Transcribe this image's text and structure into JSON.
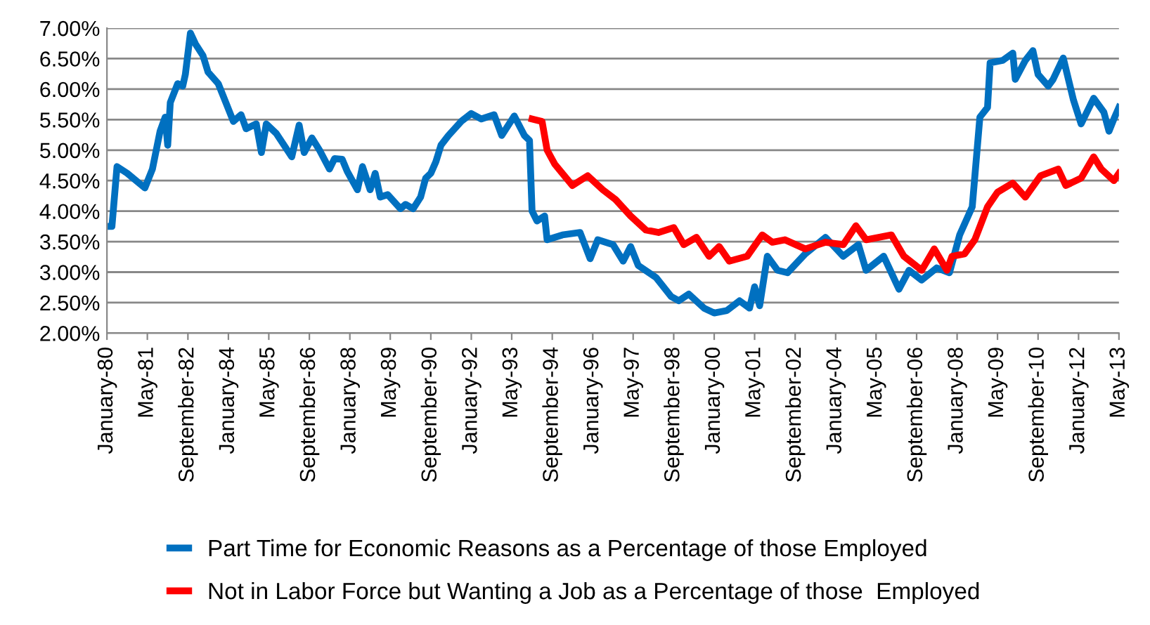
{
  "chart_data": {
    "type": "line",
    "ylim": [
      2,
      7
    ],
    "yticks": [
      {
        "value": 2,
        "label": "2.00%"
      },
      {
        "value": 2.5,
        "label": "2.50%"
      },
      {
        "value": 3,
        "label": "3.00%"
      },
      {
        "value": 3.5,
        "label": "3.50%"
      },
      {
        "value": 4,
        "label": "4.00%"
      },
      {
        "value": 4.5,
        "label": "4.50%"
      },
      {
        "value": 5,
        "label": "5.00%"
      },
      {
        "value": 5.5,
        "label": "5.50%"
      },
      {
        "value": 6,
        "label": "6.00%"
      },
      {
        "value": 6.5,
        "label": "6.50%"
      },
      {
        "value": 7,
        "label": "7.00%"
      }
    ],
    "xlim": [
      "1980-01",
      "2013-05"
    ],
    "xticks": [
      {
        "value": "1980-01",
        "label": "January-80"
      },
      {
        "value": "1981-05",
        "label": "May-81"
      },
      {
        "value": "1982-09",
        "label": "September-82"
      },
      {
        "value": "1984-01",
        "label": "January-84"
      },
      {
        "value": "1985-05",
        "label": "May-85"
      },
      {
        "value": "1986-09",
        "label": "September-86"
      },
      {
        "value": "1988-01",
        "label": "January-88"
      },
      {
        "value": "1989-05",
        "label": "May-89"
      },
      {
        "value": "1990-09",
        "label": "September-90"
      },
      {
        "value": "1992-01",
        "label": "January-92"
      },
      {
        "value": "1993-05",
        "label": "May-93"
      },
      {
        "value": "1994-09",
        "label": "September-94"
      },
      {
        "value": "1996-01",
        "label": "January-96"
      },
      {
        "value": "1997-05",
        "label": "May-97"
      },
      {
        "value": "1998-09",
        "label": "September-98"
      },
      {
        "value": "2000-01",
        "label": "January-00"
      },
      {
        "value": "2001-05",
        "label": "May-01"
      },
      {
        "value": "2002-09",
        "label": "September-02"
      },
      {
        "value": "2004-01",
        "label": "January-04"
      },
      {
        "value": "2005-05",
        "label": "May-05"
      },
      {
        "value": "2006-09",
        "label": "September-06"
      },
      {
        "value": "2008-01",
        "label": "January-08"
      },
      {
        "value": "2009-05",
        "label": "May-09"
      },
      {
        "value": "2010-09",
        "label": "September-10"
      },
      {
        "value": "2012-01",
        "label": "January-12"
      },
      {
        "value": "2013-05",
        "label": "May-13"
      }
    ],
    "grid": "y",
    "legend": "bottom",
    "line_style": "solid",
    "series": [
      {
        "name": "Part Time for Economic Reasons as a Percentage of those Employed",
        "color": "#0070c0",
        "x": [
          "1980-01",
          "1980-03",
          "1980-05",
          "1980-09",
          "1981-04",
          "1981-07",
          "1981-10",
          "1981-12",
          "1982-01",
          "1982-02",
          "1982-05",
          "1982-07",
          "1982-08",
          "1982-10",
          "1982-12",
          "1983-03",
          "1983-05",
          "1983-09",
          "1983-12",
          "1984-03",
          "1984-06",
          "1984-08",
          "1984-12",
          "1985-02",
          "1985-04",
          "1985-08",
          "1985-11",
          "1986-02",
          "1986-05",
          "1986-07",
          "1986-10",
          "1987-01",
          "1987-05",
          "1987-07",
          "1987-10",
          "1987-12",
          "1988-04",
          "1988-06",
          "1988-09",
          "1988-11",
          "1989-01",
          "1989-04",
          "1989-09",
          "1989-11",
          "1990-02",
          "1990-05",
          "1990-07",
          "1990-09",
          "1990-11",
          "1991-01",
          "1991-04",
          "1991-09",
          "1992-01",
          "1992-05",
          "1992-10",
          "1993-01",
          "1993-06",
          "1993-10",
          "1993-12",
          "1994-01",
          "1994-03",
          "1994-06",
          "1994-07",
          "1995-01",
          "1995-08",
          "1995-12",
          "1996-03",
          "1996-09",
          "1997-01",
          "1997-04",
          "1997-07",
          "1998-02",
          "1998-08",
          "1998-11",
          "1999-03",
          "1999-09",
          "2000-01",
          "2000-06",
          "2000-11",
          "2001-03",
          "2001-05",
          "2001-07",
          "2001-10",
          "2002-02",
          "2002-06",
          "2003-01",
          "2003-09",
          "2004-04",
          "2004-10",
          "2005-01",
          "2005-08",
          "2006-02",
          "2006-06",
          "2006-11",
          "2007-05",
          "2007-10",
          "2008-02",
          "2008-07",
          "2008-10",
          "2009-01",
          "2009-02",
          "2009-07",
          "2009-11",
          "2009-12",
          "2010-04",
          "2010-07",
          "2010-09",
          "2011-01",
          "2011-03",
          "2011-07",
          "2011-11",
          "2012-02",
          "2012-07",
          "2012-11",
          "2013-01",
          "2013-03",
          "2013-05"
        ],
        "values": [
          3.75,
          3.75,
          4.73,
          4.62,
          4.38,
          4.69,
          5.31,
          5.54,
          5.08,
          5.78,
          6.09,
          6.05,
          6.24,
          6.92,
          6.74,
          6.55,
          6.28,
          6.09,
          5.78,
          5.47,
          5.58,
          5.35,
          5.43,
          4.96,
          5.43,
          5.27,
          5.08,
          4.89,
          5.41,
          4.96,
          5.2,
          5.0,
          4.69,
          4.86,
          4.85,
          4.65,
          4.35,
          4.73,
          4.35,
          4.62,
          4.23,
          4.27,
          4.04,
          4.11,
          4.04,
          4.23,
          4.54,
          4.62,
          4.81,
          5.08,
          5.24,
          5.47,
          5.6,
          5.51,
          5.58,
          5.24,
          5.56,
          5.24,
          5.16,
          4.0,
          3.84,
          3.92,
          3.53,
          3.61,
          3.65,
          3.22,
          3.53,
          3.45,
          3.18,
          3.42,
          3.11,
          2.91,
          2.6,
          2.53,
          2.64,
          2.41,
          2.33,
          2.37,
          2.53,
          2.41,
          2.76,
          2.45,
          3.26,
          3.03,
          2.99,
          3.3,
          3.57,
          3.26,
          3.45,
          3.03,
          3.26,
          2.72,
          3.03,
          2.87,
          3.07,
          2.99,
          3.61,
          4.07,
          5.54,
          5.7,
          6.43,
          6.47,
          6.59,
          6.16,
          6.47,
          6.63,
          6.24,
          6.05,
          6.16,
          6.51,
          5.82,
          5.43,
          5.85,
          5.62,
          5.31,
          5.51,
          5.7
        ]
      },
      {
        "name": "Not in Labor Force but Wanting a Job as a Percentage of those  Employed",
        "color": "#ff0000",
        "x": [
          "1994-01",
          "1994-05",
          "1994-07",
          "1994-10",
          "1995-05",
          "1995-11",
          "1996-05",
          "1996-10",
          "1997-04",
          "1997-10",
          "1998-03",
          "1998-09",
          "1999-01",
          "1999-06",
          "1999-11",
          "2000-03",
          "2000-07",
          "2001-02",
          "2001-08",
          "2001-12",
          "2002-05",
          "2003-01",
          "2003-09",
          "2004-04",
          "2004-09",
          "2005-01",
          "2005-11",
          "2006-04",
          "2006-11",
          "2007-04",
          "2007-09",
          "2007-11",
          "2008-04",
          "2008-08",
          "2009-01",
          "2009-05",
          "2009-11",
          "2010-04",
          "2010-10",
          "2011-05",
          "2011-08",
          "2012-02",
          "2012-07",
          "2012-10",
          "2013-03",
          "2013-05"
        ],
        "values": [
          5.51,
          5.47,
          5.0,
          4.77,
          4.42,
          4.58,
          4.35,
          4.19,
          3.92,
          3.69,
          3.65,
          3.73,
          3.45,
          3.57,
          3.26,
          3.42,
          3.18,
          3.26,
          3.61,
          3.49,
          3.53,
          3.38,
          3.49,
          3.45,
          3.76,
          3.53,
          3.61,
          3.26,
          3.03,
          3.38,
          3.03,
          3.26,
          3.3,
          3.53,
          4.07,
          4.31,
          4.46,
          4.23,
          4.58,
          4.69,
          4.42,
          4.54,
          4.89,
          4.69,
          4.5,
          4.62
        ]
      }
    ]
  }
}
